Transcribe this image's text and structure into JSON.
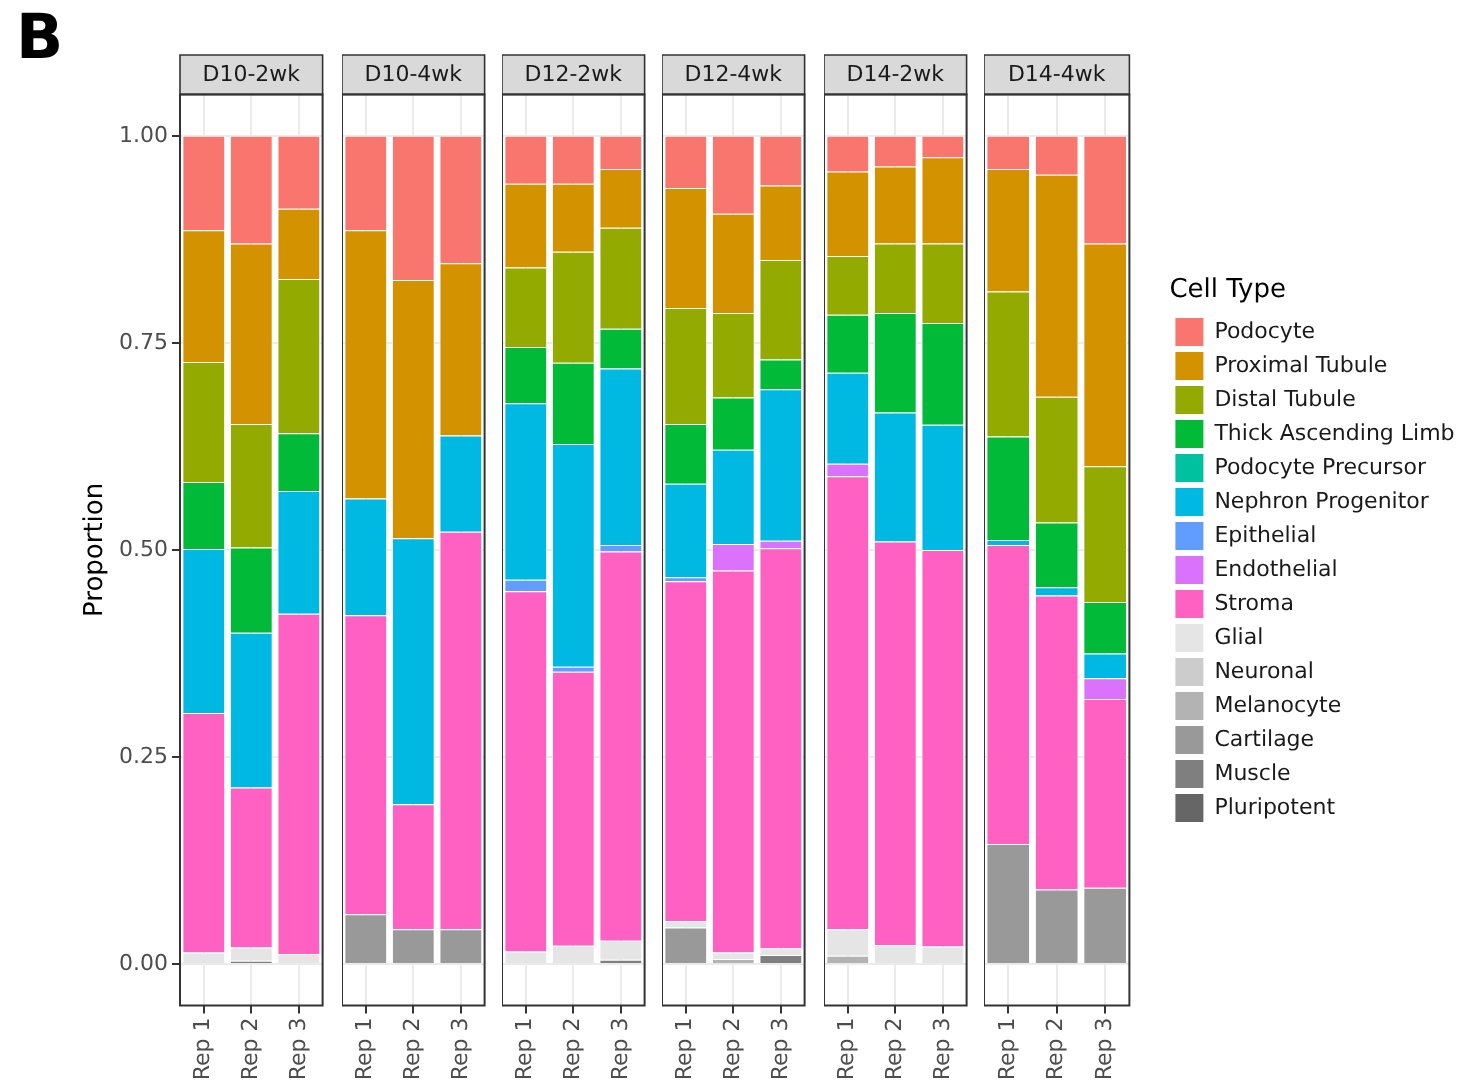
{
  "chart_data": [
    {
      "type": "bar",
      "title": "D10-2wk",
      "stacked": true,
      "categories": [
        "Rep 1",
        "Rep 2",
        "Rep 3"
      ],
      "ylabel": "Proportion",
      "ylim": [
        -0.05,
        1.05
      ],
      "yticks": [
        {
          "value": 0,
          "label": "0.00"
        },
        {
          "value": 0.25,
          "label": "0.25"
        },
        {
          "value": 0.5,
          "label": "0.50"
        },
        {
          "value": 0.75,
          "label": "0.75"
        },
        {
          "value": 1,
          "label": "1.00"
        }
      ],
      "grid": true,
      "legend": false,
      "annotations": [
        "B"
      ],
      "series": [
        {
          "color": "#666666",
          "values": [
            0,
            0,
            0
          ]
        },
        {
          "color": "#7f7f7f",
          "values": [
            0,
            0.004,
            0
          ]
        },
        {
          "color": "#999999",
          "values": [
            0,
            0,
            0
          ]
        },
        {
          "color": "#b3b3b3",
          "values": [
            0,
            0,
            0
          ]
        },
        {
          "color": "#cccccc",
          "values": [
            0,
            0,
            0
          ]
        },
        {
          "color": "#e5e5e5",
          "values": [
            0.014,
            0.016,
            0.012
          ]
        },
        {
          "color": "#ff61c3",
          "values": [
            0.289,
            0.193,
            0.411
          ]
        },
        {
          "color": "#db72fb",
          "values": [
            0,
            0,
            0
          ]
        },
        {
          "color": "#619cff",
          "values": [
            0,
            0,
            0
          ]
        },
        {
          "color": "#00b9e3",
          "values": [
            0.198,
            0.187,
            0.148
          ]
        },
        {
          "color": "#00c19f",
          "values": [
            0,
            0,
            0
          ]
        },
        {
          "color": "#00ba38",
          "values": [
            0.081,
            0.103,
            0.07
          ]
        },
        {
          "color": "#93aa00",
          "values": [
            0.145,
            0.149,
            0.186
          ]
        },
        {
          "color": "#d39200",
          "values": [
            0.159,
            0.218,
            0.085
          ]
        },
        {
          "color": "#f8766d",
          "values": [
            0.114,
            0.13,
            0.088
          ]
        }
      ]
    },
    {
      "type": "bar",
      "title": "D10-4wk",
      "stacked": true,
      "categories": [
        "Rep 1",
        "Rep 2",
        "Rep 3"
      ],
      "ylim": [
        -0.05,
        1.05
      ],
      "yticks": [
        0,
        0.25,
        0.5,
        0.75,
        1
      ],
      "grid": true,
      "legend": false,
      "tick_labels": "x",
      "series": [
        {
          "color": "#666666",
          "values": [
            0,
            0,
            0
          ]
        },
        {
          "color": "#7f7f7f",
          "values": [
            0,
            0,
            0
          ]
        },
        {
          "color": "#999999",
          "values": [
            0.06,
            0.042,
            0.042
          ]
        },
        {
          "color": "#b3b3b3",
          "values": [
            0,
            0,
            0
          ]
        },
        {
          "color": "#cccccc",
          "values": [
            0,
            0,
            0
          ]
        },
        {
          "color": "#e5e5e5",
          "values": [
            0,
            0,
            0
          ]
        },
        {
          "color": "#ff61c3",
          "values": [
            0.361,
            0.151,
            0.48
          ]
        },
        {
          "color": "#db72fb",
          "values": [
            0,
            0,
            0
          ]
        },
        {
          "color": "#619cff",
          "values": [
            0,
            0,
            0
          ]
        },
        {
          "color": "#00b9e3",
          "values": [
            0.141,
            0.321,
            0.116
          ]
        },
        {
          "color": "#00c19f",
          "values": [
            0,
            0,
            0
          ]
        },
        {
          "color": "#00ba38",
          "values": [
            0,
            0,
            0
          ]
        },
        {
          "color": "#93aa00",
          "values": [
            0,
            0,
            0
          ]
        },
        {
          "color": "#d39200",
          "values": [
            0.324,
            0.312,
            0.208
          ]
        },
        {
          "color": "#f8766d",
          "values": [
            0.114,
            0.174,
            0.154
          ]
        }
      ]
    },
    {
      "type": "bar",
      "title": "D12-2wk",
      "stacked": true,
      "categories": [
        "Rep 1",
        "Rep 2",
        "Rep 3"
      ],
      "ylim": [
        -0.05,
        1.05
      ],
      "yticks": [
        0,
        0.25,
        0.5,
        0.75,
        1
      ],
      "grid": true,
      "legend": false,
      "tick_labels": "x",
      "series": [
        {
          "color": "#666666",
          "values": [
            0,
            0,
            0
          ]
        },
        {
          "color": "#7f7f7f",
          "values": [
            0,
            0,
            0.005
          ]
        },
        {
          "color": "#999999",
          "values": [
            0,
            0,
            0
          ]
        },
        {
          "color": "#b3b3b3",
          "values": [
            0,
            0,
            0
          ]
        },
        {
          "color": "#cccccc",
          "values": [
            0,
            0,
            0
          ]
        },
        {
          "color": "#e5e5e5",
          "values": [
            0.015,
            0.022,
            0.023
          ]
        },
        {
          "color": "#ff61c3",
          "values": [
            0.435,
            0.331,
            0.47
          ]
        },
        {
          "color": "#db72fb",
          "values": [
            0,
            0,
            0
          ]
        },
        {
          "color": "#619cff",
          "values": [
            0.014,
            0.006,
            0.008
          ]
        },
        {
          "color": "#00b9e3",
          "values": [
            0.213,
            0.269,
            0.213
          ]
        },
        {
          "color": "#00c19f",
          "values": [
            0,
            0,
            0
          ]
        },
        {
          "color": "#00ba38",
          "values": [
            0.068,
            0.098,
            0.048
          ]
        },
        {
          "color": "#93aa00",
          "values": [
            0.096,
            0.134,
            0.122
          ]
        },
        {
          "color": "#d39200",
          "values": [
            0.101,
            0.082,
            0.071
          ]
        },
        {
          "color": "#f8766d",
          "values": [
            0.058,
            0.058,
            0.04
          ]
        }
      ]
    },
    {
      "type": "bar",
      "title": "D12-4wk",
      "stacked": true,
      "categories": [
        "Rep 1",
        "Rep 2",
        "Rep 3"
      ],
      "ylim": [
        -0.05,
        1.05
      ],
      "yticks": [
        0,
        0.25,
        0.5,
        0.75,
        1
      ],
      "grid": true,
      "legend": false,
      "tick_labels": "x",
      "series": [
        {
          "color": "#666666",
          "values": [
            0,
            0,
            0
          ]
        },
        {
          "color": "#7f7f7f",
          "values": [
            0,
            0,
            0.011
          ]
        },
        {
          "color": "#999999",
          "values": [
            0.044,
            0,
            0
          ]
        },
        {
          "color": "#b3b3b3",
          "values": [
            0,
            0.006,
            0
          ]
        },
        {
          "color": "#cccccc",
          "values": [
            0,
            0,
            0
          ]
        },
        {
          "color": "#e5e5e5",
          "values": [
            0.008,
            0.008,
            0.008
          ]
        },
        {
          "color": "#ff61c3",
          "values": [
            0.41,
            0.461,
            0.483
          ]
        },
        {
          "color": "#db72fb",
          "values": [
            0,
            0.032,
            0.009
          ]
        },
        {
          "color": "#619cff",
          "values": [
            0.005,
            0,
            0
          ]
        },
        {
          "color": "#00b9e3",
          "values": [
            0.113,
            0.114,
            0.183
          ]
        },
        {
          "color": "#00c19f",
          "values": [
            0,
            0,
            0
          ]
        },
        {
          "color": "#00ba38",
          "values": [
            0.072,
            0.063,
            0.036
          ]
        },
        {
          "color": "#93aa00",
          "values": [
            0.14,
            0.102,
            0.12
          ]
        },
        {
          "color": "#d39200",
          "values": [
            0.145,
            0.12,
            0.09
          ]
        },
        {
          "color": "#f8766d",
          "values": [
            0.063,
            0.094,
            0.06
          ]
        }
      ]
    },
    {
      "type": "bar",
      "title": "D14-2wk",
      "stacked": true,
      "categories": [
        "Rep 1",
        "Rep 2",
        "Rep 3"
      ],
      "ylim": [
        -0.05,
        1.05
      ],
      "yticks": [
        0,
        0.25,
        0.5,
        0.75,
        1
      ],
      "grid": true,
      "legend": false,
      "tick_labels": "x",
      "series": [
        {
          "color": "#666666",
          "values": [
            0,
            0,
            0
          ]
        },
        {
          "color": "#7f7f7f",
          "values": [
            0,
            0,
            0
          ]
        },
        {
          "color": "#999999",
          "values": [
            0,
            0,
            0
          ]
        },
        {
          "color": "#b3b3b3",
          "values": [
            0.01,
            0,
            0
          ]
        },
        {
          "color": "#cccccc",
          "values": [
            0,
            0,
            0
          ]
        },
        {
          "color": "#e5e5e5",
          "values": [
            0.032,
            0.023,
            0.021
          ]
        },
        {
          "color": "#ff61c3",
          "values": [
            0.547,
            0.487,
            0.479
          ]
        },
        {
          "color": "#db72fb",
          "values": [
            0.015,
            0,
            0
          ]
        },
        {
          "color": "#619cff",
          "values": [
            0,
            0,
            0
          ]
        },
        {
          "color": "#00b9e3",
          "values": [
            0.11,
            0.156,
            0.151
          ]
        },
        {
          "color": "#00c19f",
          "values": [
            0,
            0,
            0
          ]
        },
        {
          "color": "#00ba38",
          "values": [
            0.07,
            0.12,
            0.123
          ]
        },
        {
          "color": "#93aa00",
          "values": [
            0.071,
            0.084,
            0.096
          ]
        },
        {
          "color": "#d39200",
          "values": [
            0.102,
            0.093,
            0.104
          ]
        },
        {
          "color": "#f8766d",
          "values": [
            0.043,
            0.037,
            0.026
          ]
        }
      ]
    },
    {
      "type": "bar",
      "title": "D14-4wk",
      "stacked": true,
      "categories": [
        "Rep 1",
        "Rep 2",
        "Rep 3"
      ],
      "ylim": [
        -0.05,
        1.05
      ],
      "yticks": [
        0,
        0.25,
        0.5,
        0.75,
        1
      ],
      "grid": true,
      "legend": "right",
      "legend_title": "Cell Type",
      "tick_labels": "x",
      "series": [
        {
          "name": "Pluripotent",
          "color": "#666666",
          "values": [
            0,
            0,
            0
          ]
        },
        {
          "name": "Muscle",
          "color": "#7f7f7f",
          "values": [
            0,
            0,
            0
          ]
        },
        {
          "name": "Cartilage",
          "color": "#999999",
          "values": [
            0.145,
            0.09,
            0.092
          ]
        },
        {
          "name": "Melanocyte",
          "color": "#b3b3b3",
          "values": [
            0,
            0,
            0
          ]
        },
        {
          "name": "Neuronal",
          "color": "#cccccc",
          "values": [
            0,
            0,
            0
          ]
        },
        {
          "name": "Glial",
          "color": "#e5e5e5",
          "values": [
            0,
            0,
            0
          ]
        },
        {
          "name": "Stroma",
          "color": "#ff61c3",
          "values": [
            0.361,
            0.355,
            0.228
          ]
        },
        {
          "name": "Endothelial",
          "color": "#db72fb",
          "values": [
            0,
            0,
            0.025
          ]
        },
        {
          "name": "Epithelial",
          "color": "#619cff",
          "values": [
            0,
            0,
            0
          ]
        },
        {
          "name": "Nephron Progenitor",
          "color": "#00b9e3",
          "values": [
            0.006,
            0.01,
            0.03
          ]
        },
        {
          "name": "Podocyte Precursor",
          "color": "#00c19f",
          "values": [
            0,
            0,
            0
          ]
        },
        {
          "name": "Thick Ascending Limb",
          "color": "#00ba38",
          "values": [
            0.125,
            0.078,
            0.062
          ]
        },
        {
          "name": "Distal Tubule",
          "color": "#93aa00",
          "values": [
            0.175,
            0.152,
            0.164
          ]
        },
        {
          "name": "Proximal Tubule",
          "color": "#d39200",
          "values": [
            0.148,
            0.268,
            0.269
          ]
        },
        {
          "name": "Podocyte",
          "color": "#f8766d",
          "values": [
            0.04,
            0.047,
            0.13
          ]
        }
      ]
    }
  ]
}
